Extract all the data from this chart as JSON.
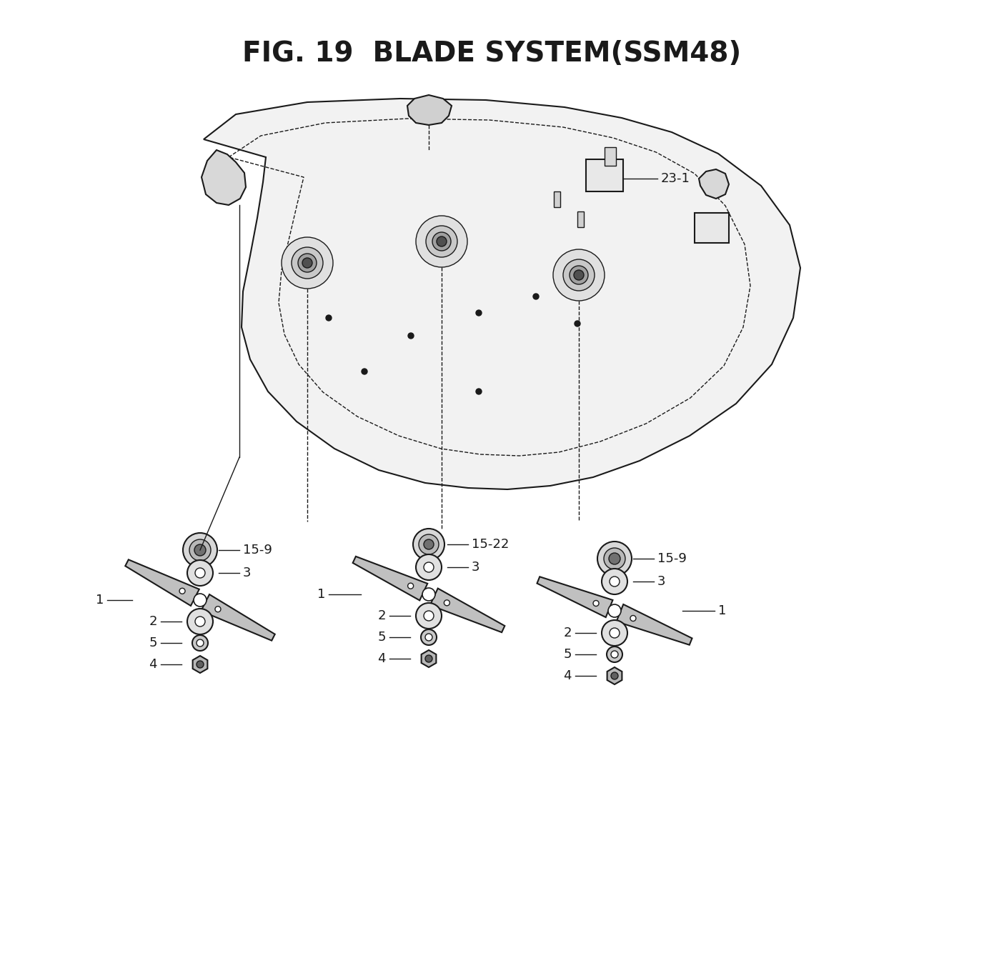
{
  "title": "FIG. 19  BLADE SYSTEM(SSM48)",
  "title_fontsize": 28,
  "title_fontweight": "bold",
  "bg_color": "#ffffff",
  "line_color": "#1a1a1a",
  "label_fontsize": 13,
  "fig_width": 13.77,
  "fig_height": 13.41
}
